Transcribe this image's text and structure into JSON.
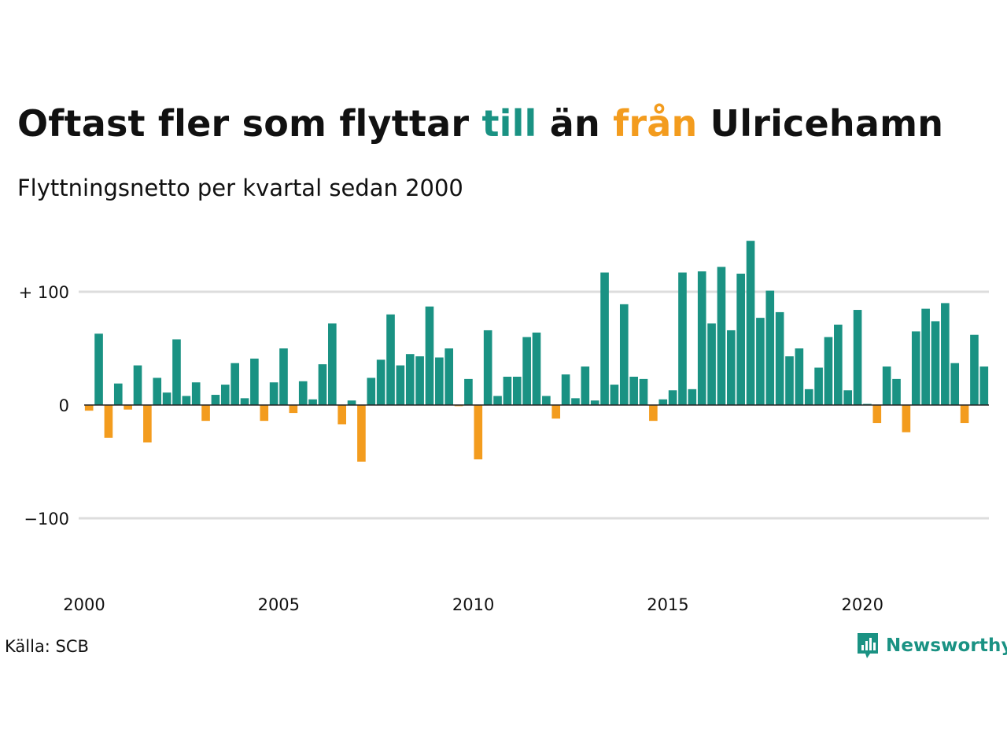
{
  "title": {
    "part1": "Oftast fler som flyttar ",
    "part2": "till",
    "part3": " än ",
    "part4": "från",
    "part5": " Ulricehamn"
  },
  "subtitle": "Flyttningsnetto per kvartal sedan 2000",
  "source": "Källa: SCB",
  "brand": {
    "name": "Newsworthy",
    "icon": "newsworthy-logo-icon"
  },
  "colors": {
    "positive": "#1a9283",
    "negative": "#f39c1e",
    "grid": "#dddddd",
    "text": "#111111"
  },
  "chart_data": {
    "type": "bar",
    "title": "",
    "xlabel": "",
    "ylabel": "",
    "ylim": [
      -150,
      150
    ],
    "x_start": 2000,
    "periods_per_year": 4,
    "y_ticks": [
      {
        "value": 100,
        "label": "+ 100"
      },
      {
        "value": 0,
        "label": "0"
      },
      {
        "value": -100,
        "label": "−100"
      }
    ],
    "x_ticks": [
      "2000",
      "2005",
      "2010",
      "2015",
      "2020"
    ],
    "values": [
      -5,
      63,
      -29,
      19,
      -4,
      35,
      -33,
      24,
      11,
      58,
      8,
      20,
      -14,
      9,
      18,
      37,
      6,
      41,
      -14,
      20,
      50,
      -7,
      21,
      5,
      36,
      72,
      -17,
      4,
      -50,
      24,
      40,
      80,
      35,
      45,
      43,
      87,
      42,
      50,
      -1,
      23,
      -48,
      66,
      8,
      25,
      25,
      60,
      64,
      8,
      -12,
      27,
      6,
      34,
      4,
      117,
      18,
      89,
      25,
      23,
      -14,
      5,
      13,
      117,
      14,
      118,
      72,
      122,
      66,
      116,
      145,
      77,
      101,
      82,
      43,
      50,
      14,
      33,
      60,
      71,
      13,
      84,
      1,
      -16,
      34,
      23,
      -24,
      65,
      85,
      74,
      90,
      37,
      -16,
      62,
      34
    ]
  }
}
